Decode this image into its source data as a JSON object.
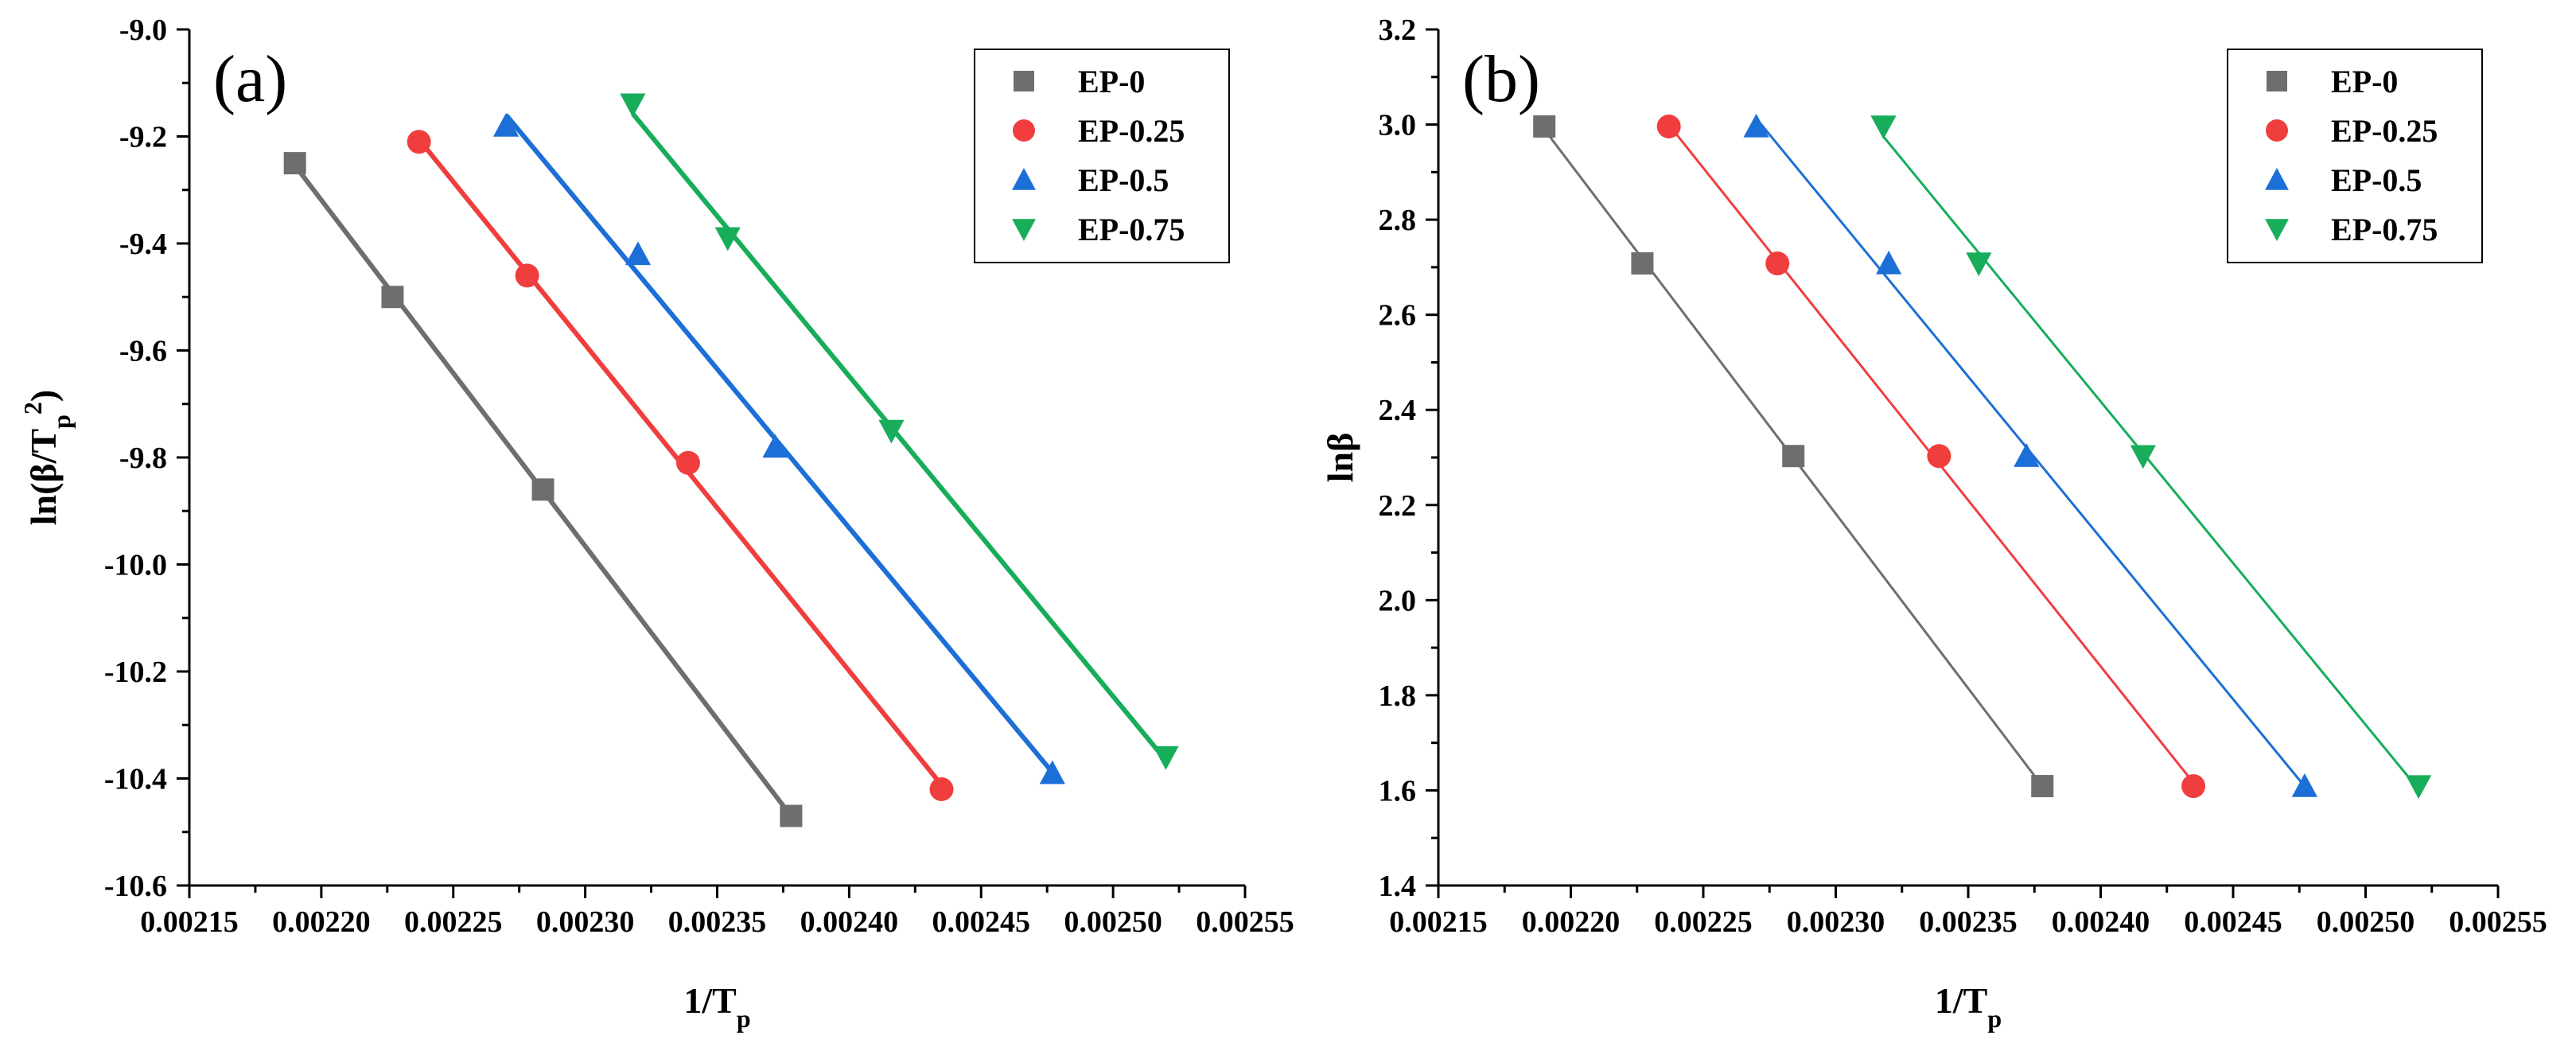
{
  "chart_data": [
    {
      "type": "scatter",
      "panel_label": "(a)",
      "xlabel": "1/T",
      "xlabel_sub": "p",
      "ylabel": "ln(β/T",
      "ylabel_sub": "p",
      "ylabel_sup": "2",
      "ylabel_end": ")",
      "xlim": [
        0.00215,
        0.00255
      ],
      "ylim": [
        -10.6,
        -9.0
      ],
      "xticks": [
        0.00215,
        0.0022,
        0.00225,
        0.0023,
        0.00235,
        0.0024,
        0.00245,
        0.0025,
        0.00255
      ],
      "xtick_labels": [
        "0.00215",
        "0.00220",
        "0.00225",
        "0.00230",
        "0.00235",
        "0.00240",
        "0.00245",
        "0.00250",
        "0.00255"
      ],
      "yticks": [
        -10.6,
        -10.4,
        -10.2,
        -10.0,
        -9.8,
        -9.6,
        -9.4,
        -9.2,
        -9.0
      ],
      "ytick_labels": [
        "-10.6",
        "-10.4",
        "-10.2",
        "-10.0",
        "-9.8",
        "-9.6",
        "-9.4",
        "-9.2",
        "-9.0"
      ],
      "legend_position": "top-right",
      "fit_lines": true,
      "series": [
        {
          "name": "EP-0",
          "color": "#6e6e6e",
          "marker": "square",
          "x": [
            0.00219,
            0.002227,
            0.002284,
            0.002378
          ],
          "y": [
            -9.25,
            -9.5,
            -9.86,
            -10.47
          ]
        },
        {
          "name": "EP-0.25",
          "color": "#f03e3e",
          "marker": "circle",
          "x": [
            0.002237,
            0.002278,
            0.002339,
            0.002435
          ],
          "y": [
            -9.21,
            -9.46,
            -9.81,
            -10.42
          ]
        },
        {
          "name": "EP-0.5",
          "color": "#1c6fd6",
          "marker": "triangle-up",
          "x": [
            0.00227,
            0.00232,
            0.002372,
            0.002477
          ],
          "y": [
            -9.18,
            -9.42,
            -9.78,
            -10.39
          ]
        },
        {
          "name": "EP-0.75",
          "color": "#17ad5a",
          "marker": "triangle-down",
          "x": [
            0.002318,
            0.002354,
            0.002416,
            0.00252
          ],
          "y": [
            -9.14,
            -9.39,
            -9.75,
            -10.36
          ]
        }
      ]
    },
    {
      "type": "scatter",
      "panel_label": "(b)",
      "xlabel": "1/T",
      "xlabel_sub": "p",
      "ylabel": "lnβ",
      "ylabel_sub": "",
      "ylabel_sup": "",
      "ylabel_end": "",
      "xlim": [
        0.00215,
        0.00255
      ],
      "ylim": [
        1.4,
        3.2
      ],
      "xticks": [
        0.00215,
        0.0022,
        0.00225,
        0.0023,
        0.00235,
        0.0024,
        0.00245,
        0.0025,
        0.00255
      ],
      "xtick_labels": [
        "0.00215",
        "0.00220",
        "0.00225",
        "0.00230",
        "0.00235",
        "0.00240",
        "0.00245",
        "0.00250",
        "0.00255"
      ],
      "yticks": [
        1.4,
        1.6,
        1.8,
        2.0,
        2.2,
        2.4,
        2.6,
        2.8,
        3.0,
        3.2
      ],
      "ytick_labels": [
        "1.4",
        "1.6",
        "1.8",
        "2.0",
        "2.2",
        "2.4",
        "2.6",
        "2.8",
        "3.0",
        "3.2"
      ],
      "legend_position": "top-right",
      "fit_lines": true,
      "series": [
        {
          "name": "EP-0",
          "color": "#6e6e6e",
          "marker": "square",
          "x": [
            0.00219,
            0.002227,
            0.002284,
            0.002378
          ],
          "y": [
            2.996,
            2.708,
            2.303,
            1.609
          ]
        },
        {
          "name": "EP-0.25",
          "color": "#f03e3e",
          "marker": "circle",
          "x": [
            0.002237,
            0.002278,
            0.002339,
            0.002435
          ],
          "y": [
            2.996,
            2.708,
            2.303,
            1.609
          ]
        },
        {
          "name": "EP-0.5",
          "color": "#1c6fd6",
          "marker": "triangle-up",
          "x": [
            0.00227,
            0.00232,
            0.002372,
            0.002477
          ],
          "y": [
            2.996,
            2.708,
            2.303,
            1.609
          ]
        },
        {
          "name": "EP-0.75",
          "color": "#17ad5a",
          "marker": "triangle-down",
          "x": [
            0.002318,
            0.002354,
            0.002416,
            0.00252
          ],
          "y": [
            2.996,
            2.708,
            2.303,
            1.609
          ]
        }
      ]
    }
  ]
}
